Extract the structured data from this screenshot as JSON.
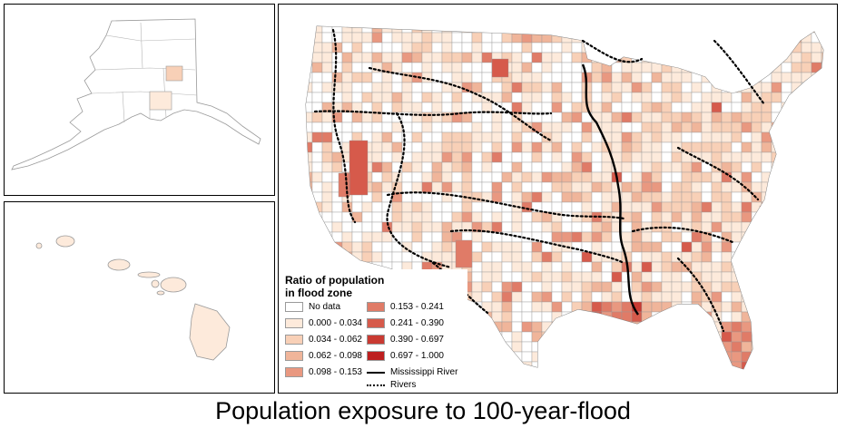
{
  "caption": "Population exposure to 100-year-flood",
  "legend": {
    "title_line1": "Ratio of population",
    "title_line2": "in flood zone",
    "classes": [
      {
        "label": "No data",
        "color": "#ffffff"
      },
      {
        "label": "0.000 - 0.034",
        "color": "#fdeadb"
      },
      {
        "label": "0.034 - 0.062",
        "color": "#f8d0b7"
      },
      {
        "label": "0.062 - 0.098",
        "color": "#f0b59a"
      },
      {
        "label": "0.098 - 0.153",
        "color": "#e99880"
      },
      {
        "label": "0.153 - 0.241",
        "color": "#e07b67"
      },
      {
        "label": "0.241 - 0.390",
        "color": "#d65a4b"
      },
      {
        "label": "0.390 - 0.697",
        "color": "#c93a32"
      },
      {
        "label": "0.697 - 1.000",
        "color": "#bd1e1e"
      }
    ],
    "mississippi_label": "Mississippi River",
    "rivers_label": "Rivers"
  },
  "map": {
    "panels": [
      "alaska",
      "hawaii",
      "contiguous-us"
    ],
    "outline_color": "#9a9a9a",
    "river_color": "#000000"
  }
}
